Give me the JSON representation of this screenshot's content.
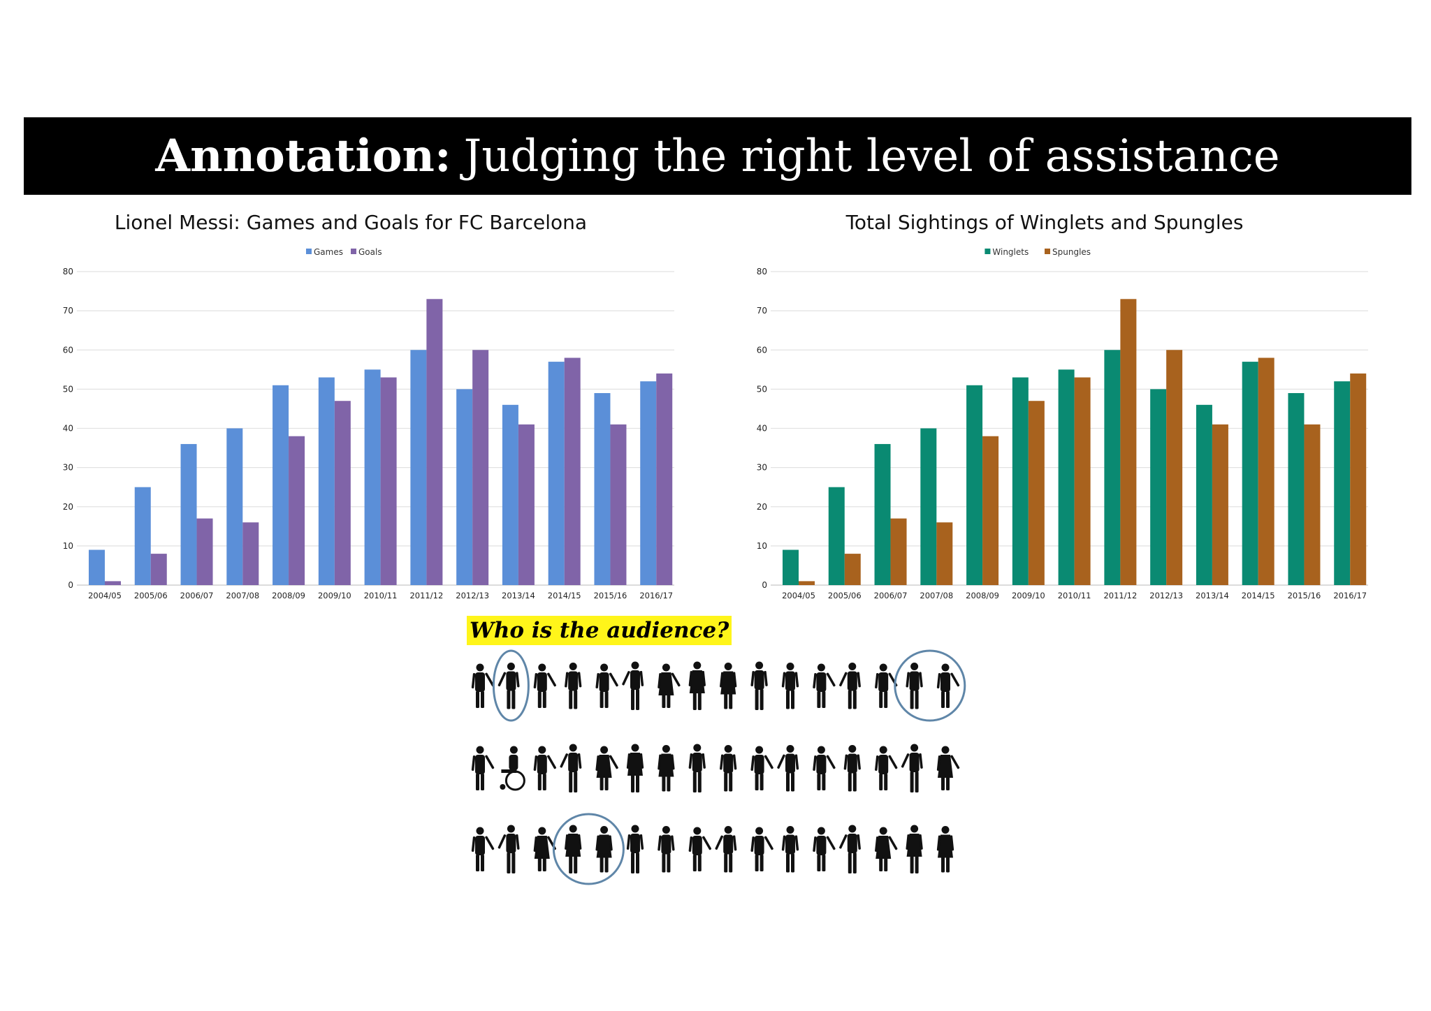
{
  "banner": {
    "title_bold": "Annotation:",
    "title_rest": "Judging the right level of assistance"
  },
  "audience": {
    "label": "Who is the audience?",
    "rows": 3,
    "people_per_row": 16,
    "highlighted_groups": [
      {
        "row": 0,
        "people": [
          1
        ]
      },
      {
        "row": 0,
        "people": [
          14,
          15
        ]
      },
      {
        "row": 2,
        "people": [
          3,
          4
        ]
      }
    ]
  },
  "chart_data": [
    {
      "type": "bar",
      "title": "Lionel Messi: Games and Goals for FC Barcelona",
      "categories": [
        "2004/05",
        "2005/06",
        "2006/07",
        "2007/08",
        "2008/09",
        "2009/10",
        "2010/11",
        "2011/12",
        "2012/13",
        "2013/14",
        "2014/15",
        "2015/16",
        "2016/17"
      ],
      "series": [
        {
          "name": "Games",
          "color": "#5b8fd8",
          "values": [
            9,
            25,
            36,
            40,
            51,
            53,
            55,
            60,
            50,
            46,
            57,
            49,
            52
          ]
        },
        {
          "name": "Goals",
          "color": "#8064a8",
          "values": [
            1,
            8,
            17,
            16,
            38,
            47,
            53,
            73,
            60,
            41,
            58,
            41,
            54
          ]
        }
      ],
      "xlabel": "",
      "ylabel": "",
      "ylim": [
        0,
        80
      ],
      "yticks": [
        0,
        10,
        20,
        30,
        40,
        50,
        60,
        70,
        80
      ],
      "grid": true,
      "legend": "top-center"
    },
    {
      "type": "bar",
      "title": "Total Sightings of Winglets and Spungles",
      "categories": [
        "2004/05",
        "2005/06",
        "2006/07",
        "2007/08",
        "2008/09",
        "2009/10",
        "2010/11",
        "2011/12",
        "2012/13",
        "2013/14",
        "2014/15",
        "2015/16",
        "2016/17"
      ],
      "series": [
        {
          "name": "Winglets",
          "color": "#0a8a72",
          "values": [
            9,
            25,
            36,
            40,
            51,
            53,
            55,
            60,
            50,
            46,
            57,
            49,
            52
          ]
        },
        {
          "name": "Spungles",
          "color": "#a8621e",
          "values": [
            1,
            8,
            17,
            16,
            38,
            47,
            53,
            73,
            60,
            41,
            58,
            41,
            54
          ]
        }
      ],
      "xlabel": "",
      "ylabel": "",
      "ylim": [
        0,
        80
      ],
      "yticks": [
        0,
        10,
        20,
        30,
        40,
        50,
        60,
        70,
        80
      ],
      "grid": true,
      "legend": "top-center"
    }
  ]
}
